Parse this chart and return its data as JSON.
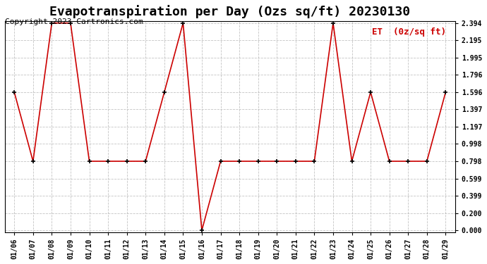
{
  "title": "Evapotranspiration per Day (Ozs sq/ft) 20230130",
  "copyright": "Copyright 2023 Cartronics.com",
  "legend_label": "ET  (0z/sq ft)",
  "x_labels": [
    "01/06",
    "01/07",
    "01/08",
    "01/09",
    "01/10",
    "01/11",
    "01/12",
    "01/13",
    "01/14",
    "01/15",
    "01/16",
    "01/17",
    "01/18",
    "01/19",
    "01/20",
    "01/21",
    "01/22",
    "01/23",
    "01/24",
    "01/25",
    "01/26",
    "01/27",
    "01/28",
    "01/29"
  ],
  "y_values": [
    1.596,
    0.798,
    2.394,
    2.394,
    0.798,
    0.798,
    0.798,
    0.798,
    1.596,
    2.394,
    0.0,
    0.798,
    0.798,
    0.798,
    0.798,
    0.798,
    0.798,
    2.394,
    0.798,
    1.596,
    0.798,
    0.798,
    0.798,
    1.596
  ],
  "y_ticks": [
    0.0,
    0.2,
    0.399,
    0.599,
    0.798,
    0.998,
    1.197,
    1.397,
    1.596,
    1.796,
    1.995,
    2.195,
    2.394
  ],
  "y_min": 0.0,
  "y_max": 2.394,
  "line_color": "#cc0000",
  "marker_color": "#000000",
  "background_color": "#ffffff",
  "grid_color": "#aaaaaa",
  "title_fontsize": 13,
  "copyright_fontsize": 8,
  "legend_color": "#cc0000"
}
